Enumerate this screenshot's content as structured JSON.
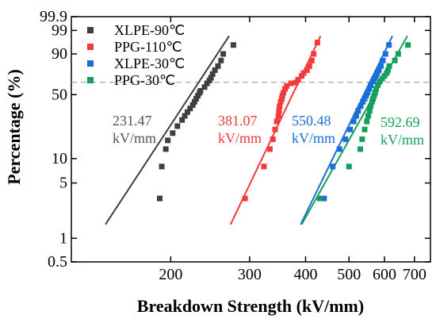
{
  "chart_data": {
    "type": "scatter",
    "subtype": "weibull-probability",
    "xlabel": "Breakdown Strength (kV/mm)",
    "ylabel": "Percentage (%)",
    "x_scale": "log",
    "y_scale": "weibull",
    "xlim": [
      120,
      760
    ],
    "ylim": [
      0.5,
      99.9
    ],
    "x_ticks": [
      200,
      300,
      400,
      500,
      600,
      700
    ],
    "x_tick_labels": [
      "200",
      "300",
      "400",
      "500",
      "600",
      "700"
    ],
    "y_ticks": [
      0.5,
      1,
      5,
      10,
      50,
      90,
      99,
      99.9
    ],
    "y_tick_labels": [
      "0.5",
      "1",
      "5",
      "10",
      "50",
      "90",
      "99",
      "99.9"
    ],
    "reference_line": {
      "y": 63.2,
      "style": "dashed",
      "color": "#aaaaaa"
    },
    "legend": {
      "placement": "top-left"
    },
    "series": [
      {
        "name": "XLPE-90℃",
        "color": "#3f3f3f",
        "points": [
          [
            189,
            3.2
          ],
          [
            191,
            8
          ],
          [
            195,
            13
          ],
          [
            197,
            16.5
          ],
          [
            202,
            20
          ],
          [
            207,
            24
          ],
          [
            212,
            28
          ],
          [
            215,
            31
          ],
          [
            218,
            34
          ],
          [
            221,
            37
          ],
          [
            224,
            40
          ],
          [
            226,
            43
          ],
          [
            228,
            46
          ],
          [
            230,
            49
          ],
          [
            232,
            52
          ],
          [
            233,
            54
          ],
          [
            238,
            58
          ],
          [
            241,
            62
          ],
          [
            244,
            65
          ],
          [
            246,
            68
          ],
          [
            248,
            72
          ],
          [
            251,
            76
          ],
          [
            255,
            80
          ],
          [
            259,
            85
          ],
          [
            262,
            90
          ],
          [
            276,
            95
          ]
        ],
        "fit_line": [
          [
            143,
            1.5
          ],
          [
            270,
            98
          ]
        ],
        "annotation": {
          "value": "231.47",
          "unit": "kV/mm"
        }
      },
      {
        "name": "PPG-110℃",
        "color": "#f23a3a",
        "points": [
          [
            293,
            3.2
          ],
          [
            323,
            8
          ],
          [
            333,
            13
          ],
          [
            338,
            17
          ],
          [
            342,
            22
          ],
          [
            345,
            27
          ],
          [
            348,
            31
          ],
          [
            349,
            35
          ],
          [
            350,
            39
          ],
          [
            352,
            43
          ],
          [
            354,
            46
          ],
          [
            355,
            49
          ],
          [
            357,
            52
          ],
          [
            360,
            56
          ],
          [
            363,
            59
          ],
          [
            371,
            62
          ],
          [
            381,
            63
          ],
          [
            385,
            66
          ],
          [
            392,
            70
          ],
          [
            396,
            73
          ],
          [
            403,
            76
          ],
          [
            408,
            80
          ],
          [
            413,
            85
          ],
          [
            417,
            90
          ],
          [
            425,
            96
          ]
        ],
        "fit_line": [
          [
            272,
            1.5
          ],
          [
            432,
            98
          ]
        ],
        "annotation": {
          "value": "381.07",
          "unit": "kV/mm"
        }
      },
      {
        "name": "XLPE-30℃",
        "color": "#1a6fd6",
        "points": [
          [
            440,
            3.2
          ],
          [
            460,
            8
          ],
          [
            476,
            13
          ],
          [
            491,
            17
          ],
          [
            503,
            22
          ],
          [
            512,
            27
          ],
          [
            519,
            31
          ],
          [
            524,
            35
          ],
          [
            531,
            39
          ],
          [
            537,
            43
          ],
          [
            542,
            46
          ],
          [
            546,
            49
          ],
          [
            550,
            52
          ],
          [
            555,
            56
          ],
          [
            559,
            60
          ],
          [
            565,
            64
          ],
          [
            569,
            67
          ],
          [
            574,
            70
          ],
          [
            578,
            73
          ],
          [
            583,
            76
          ],
          [
            589,
            80
          ],
          [
            595,
            85
          ],
          [
            603,
            90
          ],
          [
            614,
            95
          ]
        ],
        "fit_line": [
          [
            390,
            1.5
          ],
          [
            625,
            98
          ]
        ],
        "annotation": {
          "value": "550.48",
          "unit": "kV/mm"
        }
      },
      {
        "name": "PPG-30℃",
        "color": "#14a05a",
        "points": [
          [
            430,
            3.2
          ],
          [
            500,
            8
          ],
          [
            530,
            13
          ],
          [
            535,
            17
          ],
          [
            542,
            22
          ],
          [
            548,
            27
          ],
          [
            552,
            31
          ],
          [
            556,
            35
          ],
          [
            559,
            39
          ],
          [
            563,
            43
          ],
          [
            566,
            46
          ],
          [
            569,
            49
          ],
          [
            572,
            52
          ],
          [
            575,
            56
          ],
          [
            580,
            60
          ],
          [
            586,
            64
          ],
          [
            593,
            67
          ],
          [
            600,
            70
          ],
          [
            607,
            73
          ],
          [
            611,
            76
          ],
          [
            615,
            80
          ],
          [
            633,
            85
          ],
          [
            644,
            90
          ],
          [
            677,
            95
          ]
        ],
        "fit_line": [
          [
            392,
            1.5
          ],
          [
            675,
            98
          ]
        ],
        "annotation": {
          "value": "592.69",
          "unit": "kV/mm"
        }
      }
    ]
  }
}
